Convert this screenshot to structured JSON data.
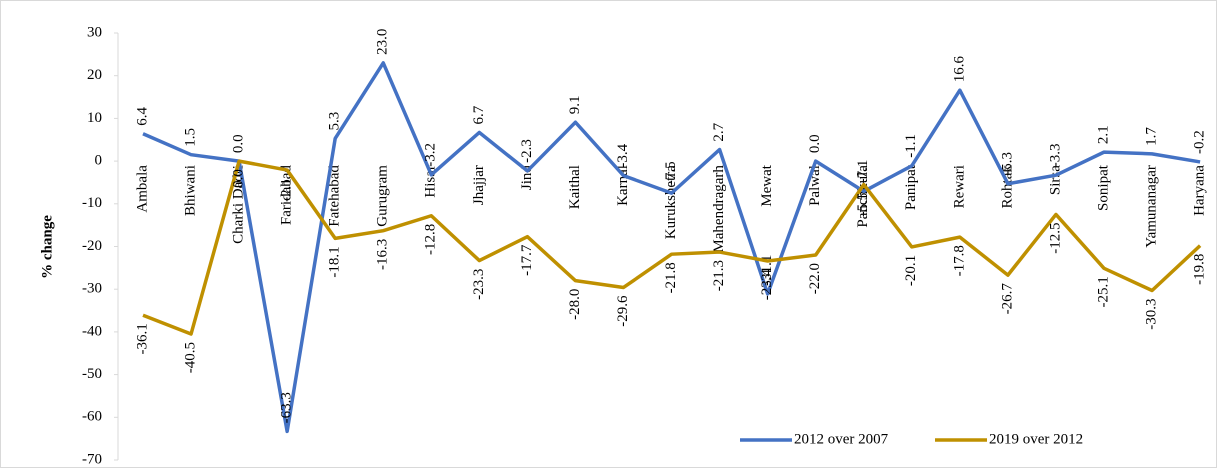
{
  "chart_data": {
    "type": "line",
    "y_label": "% change",
    "categories": [
      "Ambala",
      "Bhiwani",
      "Charki Dadri",
      "Faridabad",
      "Fatehabad",
      "Gurugram",
      "Hisar",
      "Jhajjar",
      "Jind",
      "Kaithal",
      "Karnal",
      "Kurukshetra",
      "Mahendragarh",
      "Mewat",
      "Palwal",
      "Panchkula",
      "Panipat",
      "Rewari",
      "Rohtak",
      "Sirsa",
      "Sonipat",
      "Yamunanagar",
      "Haryana"
    ],
    "series": [
      {
        "name": "2012 over 2007",
        "color": "#4472c4",
        "values": [
          6.4,
          1.5,
          0.0,
          -63.3,
          5.3,
          23.0,
          -3.2,
          6.7,
          -2.3,
          9.1,
          -3.4,
          -7.5,
          2.7,
          -31.1,
          0.0,
          -7.1,
          -1.1,
          16.6,
          -5.3,
          -3.3,
          2.1,
          1.7,
          -0.2
        ],
        "value_labels": [
          "6.4",
          "1.5",
          "0.0",
          "-63.3",
          "5.3",
          "23.0",
          "-3.2",
          "6.7",
          "-2.3",
          "9.1",
          "-3.4",
          "-7.5",
          "2.7",
          "-31.1",
          "0.0",
          "-7.1",
          "-1.1",
          "16.6",
          "-5.3",
          "-3.3",
          "2.1",
          "1.7",
          "-0.2"
        ]
      },
      {
        "name": "2019 over 2012",
        "color": "#bf9000",
        "values": [
          -36.1,
          -40.5,
          0.0,
          -2.1,
          -18.1,
          -16.3,
          -12.8,
          -23.3,
          -17.7,
          -28.0,
          -29.6,
          -21.8,
          -21.3,
          -23.4,
          -22.0,
          -5.5,
          -20.1,
          -17.8,
          -26.7,
          -12.5,
          -25.1,
          -30.3,
          -19.8
        ],
        "value_labels": [
          "-36.1",
          "-40.5",
          "0.0",
          "-2.1",
          "-18.1",
          "-16.3",
          "-12.8",
          "-23.3",
          "-17.7",
          "-28.0",
          "-29.6",
          "-21.8",
          "-21.3",
          "-23.4",
          "-22.0",
          "-5.5",
          "-20.1",
          "-17.8",
          "-26.7",
          "-12.5",
          "-25.1",
          "-30.3",
          "-19.8"
        ]
      }
    ],
    "ylim": [
      -70,
      30
    ],
    "yticks": [
      -70,
      -60,
      -50,
      -40,
      -30,
      -20,
      -10,
      0,
      10,
      20,
      30
    ],
    "grid": false,
    "legend": "bottom-right"
  }
}
